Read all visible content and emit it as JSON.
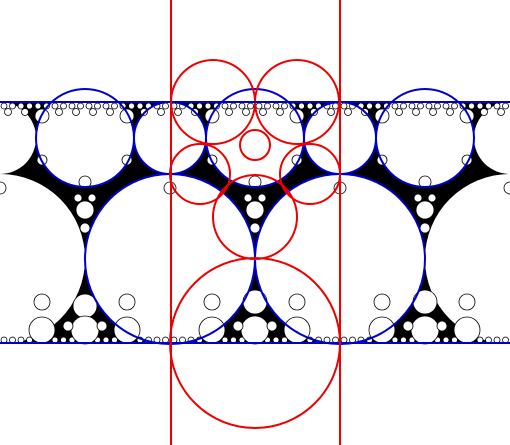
{
  "figure": {
    "description_visible_text": "",
    "colors": {
      "background": "#ffffff",
      "packing_fill": "#000000",
      "gap_circle_fill": "#ffffff",
      "blue_circles": "#0000cc",
      "red_circles": "#ee0000",
      "red_lines": "#ee0000",
      "blue_lines": "#0000cc"
    }
  }
}
